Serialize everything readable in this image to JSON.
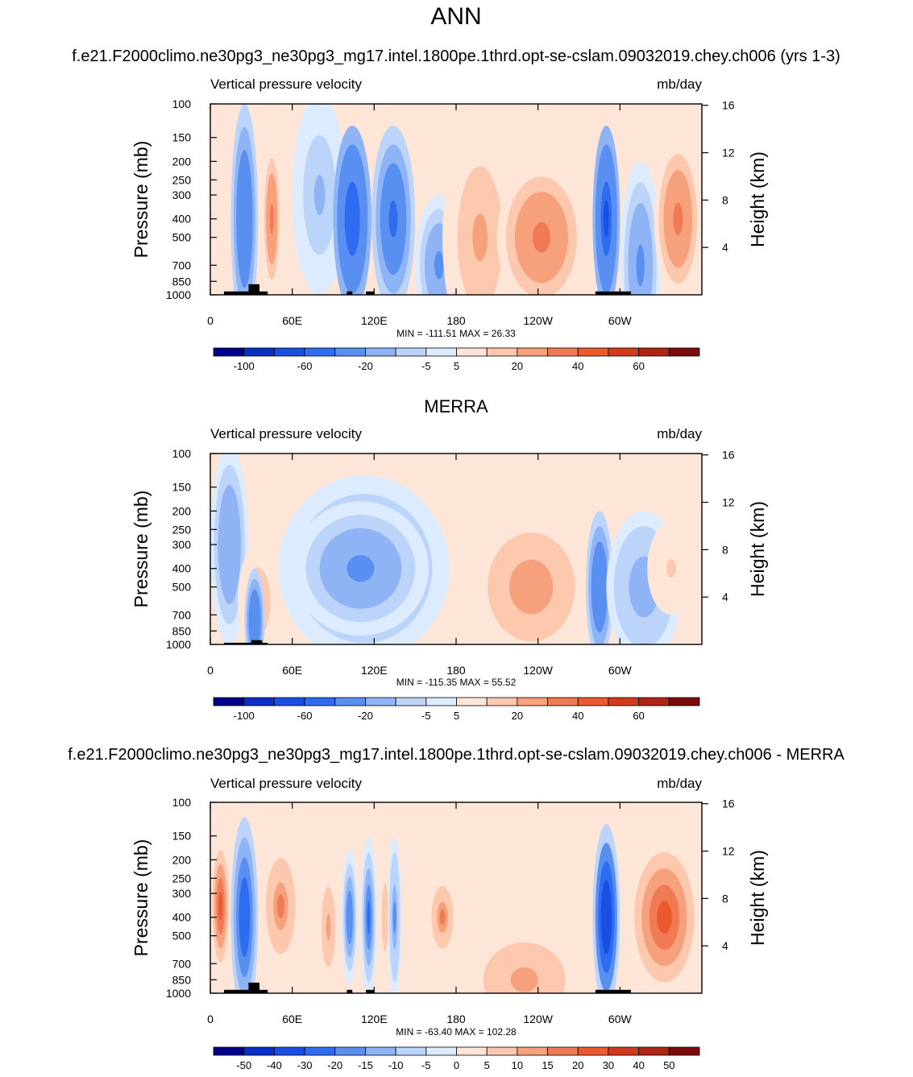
{
  "page": {
    "title": "ANN"
  },
  "colors": {
    "model_levels": [
      "#00008b",
      "#0b2fc4",
      "#1a50e2",
      "#2f6df0",
      "#5a8ff2",
      "#8fb4f5",
      "#bcd3fa",
      "#dcebfd",
      "#fde6d8",
      "#fcc9ae",
      "#f6a07c",
      "#ef7a53",
      "#eb5a2e",
      "#d13a1a",
      "#b02414",
      "#7e0b0b"
    ],
    "diff_levels": [
      "#00008b",
      "#0b2fc4",
      "#1a50e2",
      "#2f6df0",
      "#5a8ff2",
      "#8fb4f5",
      "#bcd3fa",
      "#dcebfd",
      "#fde6d8",
      "#fcc9ae",
      "#f6a07c",
      "#ef7a53",
      "#eb5a2e",
      "#d13a1a",
      "#b02414",
      "#7e0b0b"
    ],
    "topo": "#000000"
  },
  "chart_data": [
    {
      "id": "model",
      "type": "heatmap",
      "title": "f.e21.F2000climo.ne30pg3_ne30pg3_mg17.intel.1800pe.1thrd.opt-se-cslam.09032019.chey.ch006 (yrs 1-3)",
      "left_label": "Vertical pressure velocity",
      "right_label": "mb/day",
      "ylabel": "Pressure (mb)",
      "ylabel_right": "Height (km)",
      "x_ticks": [
        "0",
        "60E",
        "120E",
        "180",
        "120W",
        "60W"
      ],
      "x_tick_lon": [
        0,
        60,
        120,
        180,
        240,
        300
      ],
      "xlim": [
        0,
        360
      ],
      "y_ticks": [
        "100",
        "150",
        "200",
        "250",
        "300",
        "400",
        "500",
        "700",
        "850",
        "1000"
      ],
      "y_tick_p": [
        100,
        150,
        200,
        250,
        300,
        400,
        500,
        700,
        850,
        1000
      ],
      "ylim": [
        1000,
        100
      ],
      "y_log": true,
      "height_ticks": [
        "16",
        "12",
        "8",
        "4"
      ],
      "height_km": [
        16,
        12,
        8,
        4
      ],
      "stats": "MIN = -111.51  MAX =  26.33",
      "colorbar_labels": [
        "-100",
        "-60",
        "-20",
        "-5",
        "5",
        "20",
        "40",
        "60"
      ],
      "colorbar_label_boundaries": [
        1,
        3,
        5,
        7,
        8,
        10,
        12,
        14
      ],
      "features": [
        {
          "lon": [
            15,
            35
          ],
          "p": [
            100,
            1000
          ],
          "value": -40,
          "peak": 400
        },
        {
          "lon": [
            38,
            52
          ],
          "p": [
            200,
            1000
          ],
          "value": 20,
          "peak": 400
        },
        {
          "lon": [
            60,
            100
          ],
          "p": [
            150,
            1000
          ],
          "value": -12,
          "peak": 300
        },
        {
          "lon": [
            90,
            118
          ],
          "p": [
            130,
            1000
          ],
          "value": -55,
          "peak": 400
        },
        {
          "lon": [
            118,
            150
          ],
          "p": [
            130,
            1000
          ],
          "value": -45,
          "peak": 400
        },
        {
          "lon": [
            150,
            185
          ],
          "p": [
            300,
            1000
          ],
          "value": -25,
          "peak": 700
        },
        {
          "lon": [
            170,
            225
          ],
          "p": [
            120,
            1000
          ],
          "value": 12,
          "peak": 500
        },
        {
          "lon": [
            210,
            275
          ],
          "p": [
            200,
            1000
          ],
          "value": 24,
          "peak": 500
        },
        {
          "lon": [
            280,
            300
          ],
          "p": [
            130,
            1000
          ],
          "value": -65,
          "peak": 400
        },
        {
          "lon": [
            300,
            330
          ],
          "p": [
            200,
            1000
          ],
          "value": -25,
          "peak": 700
        },
        {
          "lon": [
            325,
            360
          ],
          "p": [
            150,
            1000
          ],
          "value": 20,
          "peak": 400
        }
      ],
      "topography": [
        {
          "lon": [
            10,
            42
          ],
          "p": 960
        },
        {
          "lon": [
            28,
            36
          ],
          "p": 880
        },
        {
          "lon": [
            100,
            104
          ],
          "p": 960
        },
        {
          "lon": [
            114,
            120
          ],
          "p": 960
        },
        {
          "lon": [
            282,
            308
          ],
          "p": 960
        }
      ]
    },
    {
      "id": "merra",
      "type": "heatmap",
      "title": "MERRA",
      "left_label": "Vertical pressure velocity",
      "right_label": "mb/day",
      "ylabel": "Pressure (mb)",
      "ylabel_right": "Height (km)",
      "x_ticks": [
        "0",
        "60E",
        "120E",
        "180",
        "120W",
        "60W"
      ],
      "x_tick_lon": [
        0,
        60,
        120,
        180,
        240,
        300
      ],
      "xlim": [
        0,
        360
      ],
      "y_ticks": [
        "100",
        "150",
        "200",
        "250",
        "300",
        "400",
        "500",
        "700",
        "850",
        "1000"
      ],
      "y_tick_p": [
        100,
        150,
        200,
        250,
        300,
        400,
        500,
        700,
        850,
        1000
      ],
      "ylim": [
        1000,
        100
      ],
      "y_log": true,
      "height_ticks": [
        "16",
        "12",
        "8",
        "4"
      ],
      "height_km": [
        16,
        12,
        8,
        4
      ],
      "stats": "MIN = -115.35  MAX =  55.52",
      "colorbar_labels": [
        "-100",
        "-60",
        "-20",
        "-5",
        "5",
        "20",
        "40",
        "60"
      ],
      "colorbar_label_boundaries": [
        1,
        3,
        5,
        7,
        8,
        10,
        12,
        14
      ],
      "features": [
        {
          "lon": [
            0,
            28
          ],
          "p": [
            170,
            1000
          ],
          "value": -18,
          "peak": 300
        },
        {
          "lon": [
            20,
            50
          ],
          "p": [
            300,
            1000
          ],
          "value": 10,
          "peak": 600
        },
        {
          "lon": [
            25,
            40
          ],
          "p": [
            400,
            1000
          ],
          "value": -35,
          "peak": 750
        },
        {
          "lon": [
            50,
            175
          ],
          "p": [
            130,
            1000
          ],
          "value": -14,
          "peak": 400
        },
        {
          "lon": [
            60,
            160
          ],
          "p": [
            200,
            900
          ],
          "value": -22,
          "peak": 400
        },
        {
          "lon": [
            180,
            270
          ],
          "p": [
            120,
            1000
          ],
          "value": 6,
          "peak": 500
        },
        {
          "lon": [
            195,
            275
          ],
          "p": [
            220,
            800
          ],
          "value": 14,
          "peak": 500
        },
        {
          "lon": [
            275,
            295
          ],
          "p": [
            200,
            1000
          ],
          "value": -35,
          "peak": 500
        },
        {
          "lon": [
            290,
            345
          ],
          "p": [
            200,
            1000
          ],
          "value": -14,
          "peak": 500
        },
        {
          "lon": [
            320,
            355
          ],
          "p": [
            250,
            700
          ],
          "value": 5,
          "peak": 400
        }
      ],
      "topography": [
        {
          "lon": [
            10,
            42
          ],
          "p": 980
        },
        {
          "lon": [
            30,
            38
          ],
          "p": 950
        }
      ]
    },
    {
      "id": "diff",
      "type": "heatmap",
      "title": "f.e21.F2000climo.ne30pg3_ne30pg3_mg17.intel.1800pe.1thrd.opt-se-cslam.09032019.chey.ch006 - MERRA",
      "left_label": "Vertical pressure velocity",
      "right_label": "mb/day",
      "ylabel": "Pressure (mb)",
      "ylabel_right": "Height (km)",
      "x_ticks": [
        "0",
        "60E",
        "120E",
        "180",
        "120W",
        "60W"
      ],
      "x_tick_lon": [
        0,
        60,
        120,
        180,
        240,
        300
      ],
      "xlim": [
        0,
        360
      ],
      "y_ticks": [
        "100",
        "150",
        "200",
        "250",
        "300",
        "400",
        "500",
        "700",
        "850",
        "1000"
      ],
      "y_tick_p": [
        100,
        150,
        200,
        250,
        300,
        400,
        500,
        700,
        850,
        1000
      ],
      "ylim": [
        1000,
        100
      ],
      "y_log": true,
      "height_ticks": [
        "16",
        "12",
        "8",
        "4"
      ],
      "height_km": [
        16,
        12,
        8,
        4
      ],
      "stats": "MIN = -63.40  MAX = 102.28",
      "colorbar_labels": [
        "-50",
        "-40",
        "-30",
        "-20",
        "-15",
        "-10",
        "-5",
        "0",
        "5",
        "10",
        "15",
        "20",
        "30",
        "40",
        "50"
      ],
      "colorbar_label_boundaries": [
        1,
        2,
        3,
        4,
        5,
        6,
        7,
        8,
        9,
        10,
        11,
        12,
        13,
        14,
        15
      ],
      "features": [
        {
          "lon": [
            0,
            360
          ],
          "p": [
            100,
            1000
          ],
          "value": 4,
          "peak": 500
        },
        {
          "lon": [
            0,
            15
          ],
          "p": [
            150,
            800
          ],
          "value": 22,
          "peak": 350
        },
        {
          "lon": [
            15,
            35
          ],
          "p": [
            120,
            1000
          ],
          "value": -28,
          "peak": 400
        },
        {
          "lon": [
            38,
            65
          ],
          "p": [
            170,
            700
          ],
          "value": 16,
          "peak": 350
        },
        {
          "lon": [
            78,
            95
          ],
          "p": [
            200,
            900
          ],
          "value": 12,
          "peak": 450
        },
        {
          "lon": [
            96,
            108
          ],
          "p": [
            200,
            900
          ],
          "value": -20,
          "peak": 400
        },
        {
          "lon": [
            110,
            122
          ],
          "p": [
            150,
            1000
          ],
          "value": -25,
          "peak": 400
        },
        {
          "lon": [
            124,
            132
          ],
          "p": [
            200,
            800
          ],
          "value": 9,
          "peak": 400
        },
        {
          "lon": [
            130,
            140
          ],
          "p": [
            150,
            1000
          ],
          "value": -16,
          "peak": 400
        },
        {
          "lon": [
            160,
            180
          ],
          "p": [
            250,
            600
          ],
          "value": 16,
          "peak": 400
        },
        {
          "lon": [
            180,
            280
          ],
          "p": [
            400,
            1000
          ],
          "value": 10,
          "peak": 850
        },
        {
          "lon": [
            280,
            300
          ],
          "p": [
            130,
            1000
          ],
          "value": -40,
          "peak": 400
        },
        {
          "lon": [
            305,
            360
          ],
          "p": [
            150,
            1000
          ],
          "value": 24,
          "peak": 400
        }
      ],
      "topography": [
        {
          "lon": [
            10,
            42
          ],
          "p": 960
        },
        {
          "lon": [
            28,
            36
          ],
          "p": 880
        },
        {
          "lon": [
            100,
            104
          ],
          "p": 960
        },
        {
          "lon": [
            114,
            120
          ],
          "p": 960
        },
        {
          "lon": [
            282,
            308
          ],
          "p": 960
        }
      ]
    }
  ]
}
